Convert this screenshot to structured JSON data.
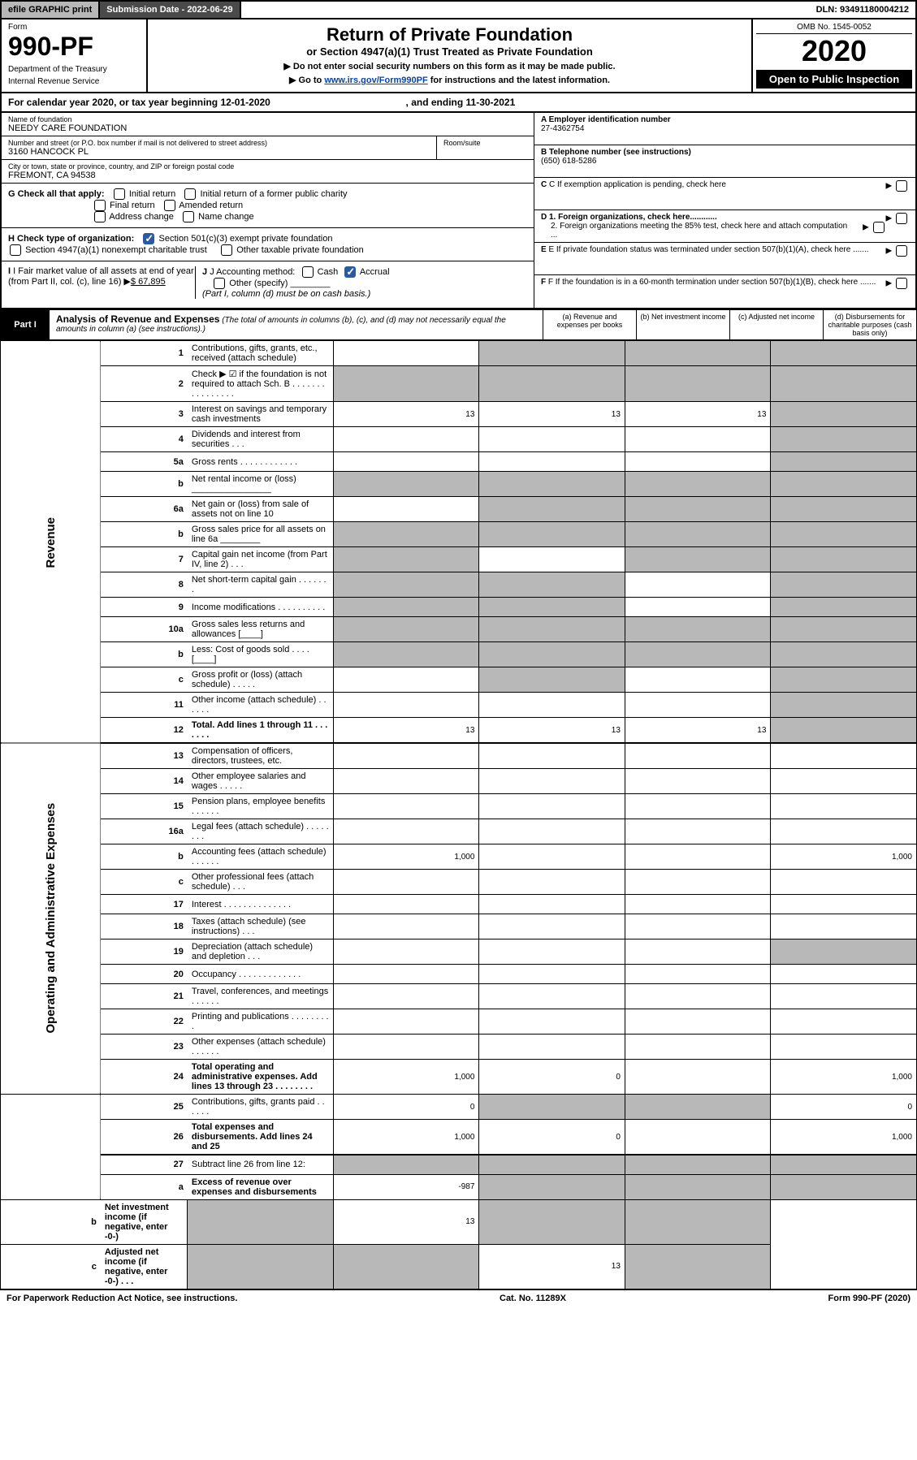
{
  "topbar": {
    "efile": "efile GRAPHIC print",
    "submission_label": "Submission Date - 2022-06-29",
    "dln": "DLN: 93491180004212"
  },
  "header": {
    "form_label": "Form",
    "form_number": "990-PF",
    "dept1": "Department of the Treasury",
    "dept2": "Internal Revenue Service",
    "title": "Return of Private Foundation",
    "subtitle": "or Section 4947(a)(1) Trust Treated as Private Foundation",
    "instruct1": "▶ Do not enter social security numbers on this form as it may be made public.",
    "instruct2_pre": "▶ Go to ",
    "instruct2_link": "www.irs.gov/Form990PF",
    "instruct2_post": " for instructions and the latest information.",
    "omb": "OMB No. 1545-0052",
    "year": "2020",
    "open": "Open to Public Inspection"
  },
  "calendar": {
    "text_pre": "For calendar year 2020, or tax year beginning ",
    "begin": "12-01-2020",
    "mid": " , and ending ",
    "end": "11-30-2021"
  },
  "foundation": {
    "name_label": "Name of foundation",
    "name": "NEEDY CARE FOUNDATION",
    "addr_label": "Number and street (or P.O. box number if mail is not delivered to street address)",
    "addr": "3160 HANCOCK PL",
    "room_label": "Room/suite",
    "city_label": "City or town, state or province, country, and ZIP or foreign postal code",
    "city": "FREMONT, CA  94538",
    "ein_label": "A Employer identification number",
    "ein": "27-4362754",
    "phone_label": "B Telephone number (see instructions)",
    "phone": "(650) 618-5286",
    "c_label": "C If exemption application is pending, check here",
    "d1_label": "D 1. Foreign organizations, check here............",
    "d2_label": "2. Foreign organizations meeting the 85% test, check here and attach computation ...",
    "e_label": "E  If private foundation status was terminated under section 507(b)(1)(A), check here .......",
    "f_label": "F  If the foundation is in a 60-month termination under section 507(b)(1)(B), check here .......",
    "g_label": "G Check all that apply:",
    "g_opts": [
      "Initial return",
      "Initial return of a former public charity",
      "Final return",
      "Amended return",
      "Address change",
      "Name change"
    ],
    "h_label": "H Check type of organization:",
    "h1": "Section 501(c)(3) exempt private foundation",
    "h2": "Section 4947(a)(1) nonexempt charitable trust",
    "h3": "Other taxable private foundation",
    "i_label": "I Fair market value of all assets at end of year (from Part II, col. (c), line 16)",
    "i_val": "$  67,895",
    "j_label": "J Accounting method:",
    "j_cash": "Cash",
    "j_accrual": "Accrual",
    "j_other": "Other (specify)",
    "j_note": "(Part I, column (d) must be on cash basis.)"
  },
  "part1": {
    "label": "Part I",
    "title": "Analysis of Revenue and Expenses",
    "note": "(The total of amounts in columns (b), (c), and (d) may not necessarily equal the amounts in column (a) (see instructions).)",
    "cols": {
      "a": "(a) Revenue and expenses per books",
      "b": "(b) Net investment income",
      "c": "(c) Adjusted net income",
      "d": "(d) Disbursements for charitable purposes (cash basis only)"
    }
  },
  "side_labels": {
    "revenue": "Revenue",
    "expenses": "Operating and Administrative Expenses"
  },
  "rows": [
    {
      "n": "1",
      "d": "Contributions, gifts, grants, etc., received (attach schedule)",
      "a": "",
      "b": "shade",
      "c": "shade",
      "dd": "shade"
    },
    {
      "n": "2",
      "d": "Check ▶ ☑ if the foundation is not required to attach Sch. B    .  .  .  .  .  .  .  .  .  .  .  .  .  .  .  .",
      "a": "shade",
      "b": "shade",
      "c": "shade",
      "dd": "shade"
    },
    {
      "n": "3",
      "d": "Interest on savings and temporary cash investments",
      "a": "13",
      "b": "13",
      "c": "13",
      "dd": "shade"
    },
    {
      "n": "4",
      "d": "Dividends and interest from securities    .   .   .",
      "a": "",
      "b": "",
      "c": "",
      "dd": "shade"
    },
    {
      "n": "5a",
      "d": "Gross rents    .   .   .   .   .   .   .   .   .   .   .   .",
      "a": "",
      "b": "",
      "c": "",
      "dd": "shade"
    },
    {
      "n": "b",
      "d": "Net rental income or (loss) ________________",
      "a": "shade",
      "b": "shade",
      "c": "shade",
      "dd": "shade"
    },
    {
      "n": "6a",
      "d": "Net gain or (loss) from sale of assets not on line 10",
      "a": "",
      "b": "shade",
      "c": "shade",
      "dd": "shade"
    },
    {
      "n": "b",
      "d": "Gross sales price for all assets on line 6a ________",
      "a": "shade",
      "b": "shade",
      "c": "shade",
      "dd": "shade"
    },
    {
      "n": "7",
      "d": "Capital gain net income (from Part IV, line 2)   .   .   .",
      "a": "shade",
      "b": "",
      "c": "shade",
      "dd": "shade"
    },
    {
      "n": "8",
      "d": "Net short-term capital gain   .   .   .   .   .   .   .",
      "a": "shade",
      "b": "shade",
      "c": "",
      "dd": "shade"
    },
    {
      "n": "9",
      "d": "Income modifications  .   .   .   .   .   .   .   .   .   .",
      "a": "shade",
      "b": "shade",
      "c": "",
      "dd": "shade"
    },
    {
      "n": "10a",
      "d": "Gross sales less returns and allowances  [____]",
      "a": "shade",
      "b": "shade",
      "c": "shade",
      "dd": "shade"
    },
    {
      "n": "b",
      "d": "Less: Cost of goods sold    .   .   .   .   [____]",
      "a": "shade",
      "b": "shade",
      "c": "shade",
      "dd": "shade"
    },
    {
      "n": "c",
      "d": "Gross profit or (loss) (attach schedule)   .   .   .   .   .",
      "a": "",
      "b": "shade",
      "c": "",
      "dd": "shade"
    },
    {
      "n": "11",
      "d": "Other income (attach schedule)    .   .   .   .   .   .",
      "a": "",
      "b": "",
      "c": "",
      "dd": "shade"
    },
    {
      "n": "12",
      "d": "Total. Add lines 1 through 11   .   .   .   .   .   .   .",
      "a": "13",
      "b": "13",
      "c": "13",
      "dd": "shade",
      "bold": true
    },
    {
      "n": "13",
      "d": "Compensation of officers, directors, trustees, etc.",
      "a": "",
      "b": "",
      "c": "",
      "dd": "",
      "sep": true
    },
    {
      "n": "14",
      "d": "Other employee salaries and wages    .   .   .   .   .",
      "a": "",
      "b": "",
      "c": "",
      "dd": ""
    },
    {
      "n": "15",
      "d": "Pension plans, employee benefits  .   .   .   .   .   .",
      "a": "",
      "b": "",
      "c": "",
      "dd": ""
    },
    {
      "n": "16a",
      "d": "Legal fees (attach schedule)  .   .   .   .   .   .   .   .",
      "a": "",
      "b": "",
      "c": "",
      "dd": ""
    },
    {
      "n": "b",
      "d": "Accounting fees (attach schedule)  .   .   .   .   .   .",
      "a": "1,000",
      "b": "",
      "c": "",
      "dd": "1,000"
    },
    {
      "n": "c",
      "d": "Other professional fees (attach schedule)    .   .   .",
      "a": "",
      "b": "",
      "c": "",
      "dd": ""
    },
    {
      "n": "17",
      "d": "Interest  .   .   .   .   .   .   .   .   .   .   .   .   .   .",
      "a": "",
      "b": "",
      "c": "",
      "dd": ""
    },
    {
      "n": "18",
      "d": "Taxes (attach schedule) (see instructions)    .   .   .",
      "a": "",
      "b": "",
      "c": "",
      "dd": ""
    },
    {
      "n": "19",
      "d": "Depreciation (attach schedule) and depletion    .   .   .",
      "a": "",
      "b": "",
      "c": "",
      "dd": "shade"
    },
    {
      "n": "20",
      "d": "Occupancy  .   .   .   .   .   .   .   .   .   .   .   .   .",
      "a": "",
      "b": "",
      "c": "",
      "dd": ""
    },
    {
      "n": "21",
      "d": "Travel, conferences, and meetings  .   .   .   .   .   .",
      "a": "",
      "b": "",
      "c": "",
      "dd": ""
    },
    {
      "n": "22",
      "d": "Printing and publications  .   .   .   .   .   .   .   .   .",
      "a": "",
      "b": "",
      "c": "",
      "dd": ""
    },
    {
      "n": "23",
      "d": "Other expenses (attach schedule)  .   .   .   .   .   .",
      "a": "",
      "b": "",
      "c": "",
      "dd": ""
    },
    {
      "n": "24",
      "d": "Total operating and administrative expenses. Add lines 13 through 23   .   .   .   .   .   .   .   .",
      "a": "1,000",
      "b": "0",
      "c": "",
      "dd": "1,000",
      "bold": true
    },
    {
      "n": "25",
      "d": "Contributions, gifts, grants paid    .   .   .   .   .   .",
      "a": "0",
      "b": "shade",
      "c": "shade",
      "dd": "0"
    },
    {
      "n": "26",
      "d": "Total expenses and disbursements. Add lines 24 and 25",
      "a": "1,000",
      "b": "0",
      "c": "",
      "dd": "1,000",
      "bold": true
    },
    {
      "n": "27",
      "d": "Subtract line 26 from line 12:",
      "a": "shade",
      "b": "shade",
      "c": "shade",
      "dd": "shade",
      "sep": true
    },
    {
      "n": "a",
      "d": "Excess of revenue over expenses and disbursements",
      "a": "-987",
      "b": "shade",
      "c": "shade",
      "dd": "shade",
      "bold": true
    },
    {
      "n": "b",
      "d": "Net investment income (if negative, enter -0-)",
      "a": "shade",
      "b": "13",
      "c": "shade",
      "dd": "shade",
      "bold": true
    },
    {
      "n": "c",
      "d": "Adjusted net income (if negative, enter -0-)   .   .   .",
      "a": "shade",
      "b": "shade",
      "c": "13",
      "dd": "shade",
      "bold": true
    }
  ],
  "footer": {
    "left": "For Paperwork Reduction Act Notice, see instructions.",
    "mid": "Cat. No. 11289X",
    "right": "Form 990-PF (2020)"
  },
  "colors": {
    "shade": "#b8b8b8",
    "darkbar": "#4a4a4a",
    "link": "#0645ad"
  }
}
